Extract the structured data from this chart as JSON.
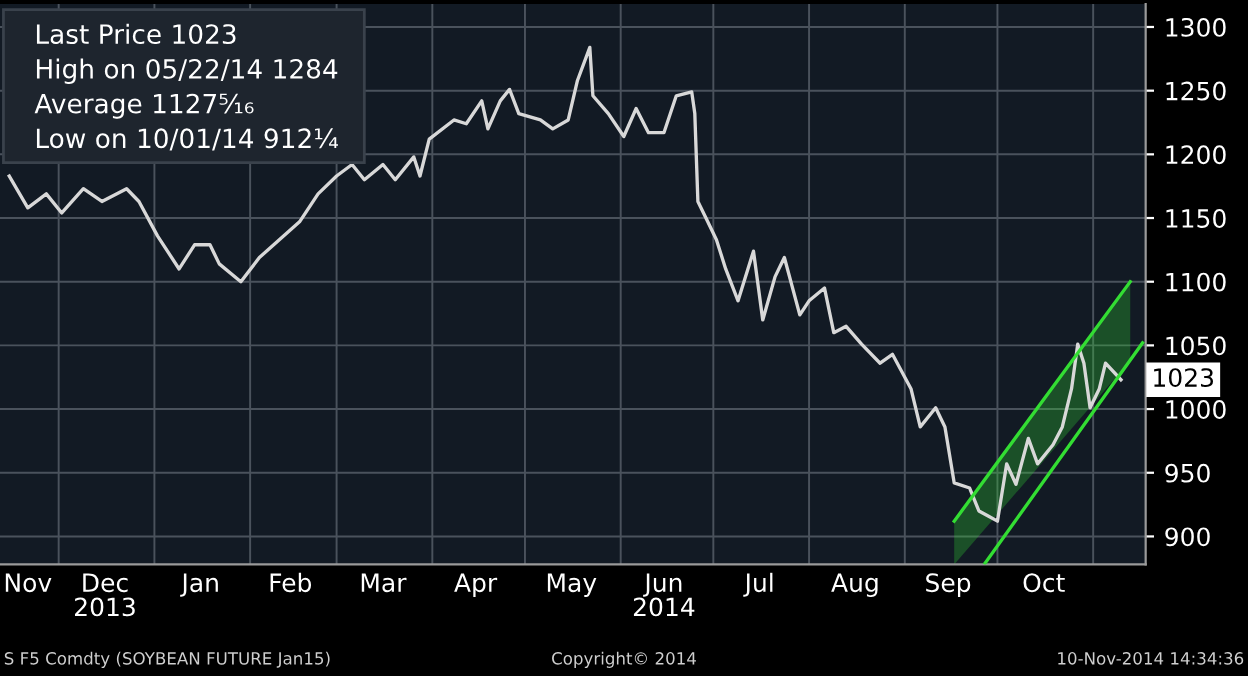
{
  "chart_data": {
    "type": "line",
    "xlim": [
      "2013-11-12",
      "2014-11-18"
    ],
    "ylim": [
      878,
      1318
    ],
    "yticks": [
      900,
      950,
      1000,
      1050,
      1100,
      1150,
      1200,
      1250,
      1300
    ],
    "xticks": [
      {
        "value": "2013-11-21",
        "label": "Nov"
      },
      {
        "value": "2013-12-01",
        "label": null
      },
      {
        "value": "2013-12-16",
        "label": "Dec\n2013"
      },
      {
        "value": "2014-01-01",
        "label": null
      },
      {
        "value": "2014-01-16",
        "label": "Jan"
      },
      {
        "value": "2014-02-01",
        "label": null
      },
      {
        "value": "2014-02-14",
        "label": "Feb"
      },
      {
        "value": "2014-03-01",
        "label": null
      },
      {
        "value": "2014-03-16",
        "label": "Mar"
      },
      {
        "value": "2014-04-01",
        "label": null
      },
      {
        "value": "2014-04-15",
        "label": "Apr"
      },
      {
        "value": "2014-05-01",
        "label": null
      },
      {
        "value": "2014-05-16",
        "label": "May"
      },
      {
        "value": "2014-06-01",
        "label": null
      },
      {
        "value": "2014-06-15",
        "label": "Jun\n2014"
      },
      {
        "value": "2014-07-01",
        "label": null
      },
      {
        "value": "2014-07-16",
        "label": "Jul"
      },
      {
        "value": "2014-08-01",
        "label": null
      },
      {
        "value": "2014-08-16",
        "label": "Aug"
      },
      {
        "value": "2014-09-01",
        "label": null
      },
      {
        "value": "2014-09-15",
        "label": "Sep"
      },
      {
        "value": "2014-10-01",
        "label": null
      },
      {
        "value": "2014-10-16",
        "label": "Oct"
      },
      {
        "value": "2014-11-01",
        "label": null
      }
    ],
    "grid": true,
    "series": [
      {
        "color": "#d8d8d8",
        "x": [
          "2013-11-15",
          "2013-11-21",
          "2013-11-27",
          "2013-12-02",
          "2013-12-09",
          "2013-12-15",
          "2013-12-23",
          "2013-12-27",
          "2014-01-02",
          "2014-01-09",
          "2014-01-14",
          "2014-01-19",
          "2014-01-22",
          "2014-01-29",
          "2014-02-04",
          "2014-02-10",
          "2014-02-17",
          "2014-02-23",
          "2014-03-01",
          "2014-03-06",
          "2014-03-10",
          "2014-03-16",
          "2014-03-20",
          "2014-03-26",
          "2014-03-28",
          "2014-03-31",
          "2014-04-08",
          "2014-04-12",
          "2014-04-17",
          "2014-04-19",
          "2014-04-23",
          "2014-04-26",
          "2014-04-29",
          "2014-05-06",
          "2014-05-10",
          "2014-05-15",
          "2014-05-18",
          "2014-05-22",
          "2014-05-23",
          "2014-05-28",
          "2014-06-02",
          "2014-06-06",
          "2014-06-10",
          "2014-06-15",
          "2014-06-19",
          "2014-06-24",
          "2014-06-25",
          "2014-06-26",
          "2014-06-29",
          "2014-07-02",
          "2014-07-05",
          "2014-07-09",
          "2014-07-14",
          "2014-07-17",
          "2014-07-21",
          "2014-07-24",
          "2014-07-29",
          "2014-08-01",
          "2014-08-06",
          "2014-08-09",
          "2014-08-13",
          "2014-08-18",
          "2014-08-24",
          "2014-08-28",
          "2014-09-03",
          "2014-09-06",
          "2014-09-11",
          "2014-09-14",
          "2014-09-17",
          "2014-09-22",
          "2014-09-25",
          "2014-09-28",
          "2014-10-01",
          "2014-10-04",
          "2014-10-07",
          "2014-10-11",
          "2014-10-14",
          "2014-10-19",
          "2014-10-22",
          "2014-10-25",
          "2014-10-27",
          "2014-10-29",
          "2014-10-31",
          "2014-11-03",
          "2014-11-05",
          "2014-11-10"
        ],
        "values": [
          1183,
          1158,
          1169,
          1154,
          1173,
          1163,
          1173,
          1163,
          1136,
          1110,
          1129,
          1129,
          1114,
          1100,
          1119,
          1132,
          1147,
          1169,
          1183,
          1192,
          1180,
          1192,
          1180,
          1198,
          1183,
          1212,
          1227,
          1224,
          1242,
          1220,
          1242,
          1251,
          1232,
          1227,
          1220,
          1227,
          1258,
          1284,
          1246,
          1232,
          1214,
          1236,
          1217,
          1217,
          1246,
          1249,
          1232,
          1163,
          1148,
          1133,
          1110,
          1085,
          1124,
          1070,
          1104,
          1119,
          1074,
          1085,
          1095,
          1060,
          1065,
          1051,
          1036,
          1043,
          1016,
          986,
          1001,
          986,
          942,
          938,
          920,
          916,
          912,
          957,
          941,
          977,
          957,
          972,
          986,
          1016,
          1051,
          1036,
          1001,
          1016,
          1036,
          1023
        ]
      },
      {
        "type": "line",
        "color": "#33dd33",
        "x": [
          "2014-09-17",
          "2014-11-13"
        ],
        "values": [
          912,
          1100
        ],
        "lower": [
          878,
          1038
        ],
        "upper": [
          912,
          1100
        ]
      },
      {
        "type": "line",
        "color": "#33dd33",
        "x": [
          "2014-09-27",
          "2014-11-17"
        ],
        "values": [
          879,
          1052
        ]
      }
    ],
    "annotations": [
      "Last Price 1023",
      "High on 05/22/14 1284",
      "Average 1127⁵⁄₁₆",
      "Low on 10/01/14 912¹⁄₄",
      "S F5 Comdty (SOYBEAN FUTURE Jan15)",
      "Copyright© 2014",
      "10-Nov-2014 14:34:36",
      {
        "text": "1023",
        "x": "2014-11-10",
        "y": 1023
      }
    ]
  }
}
